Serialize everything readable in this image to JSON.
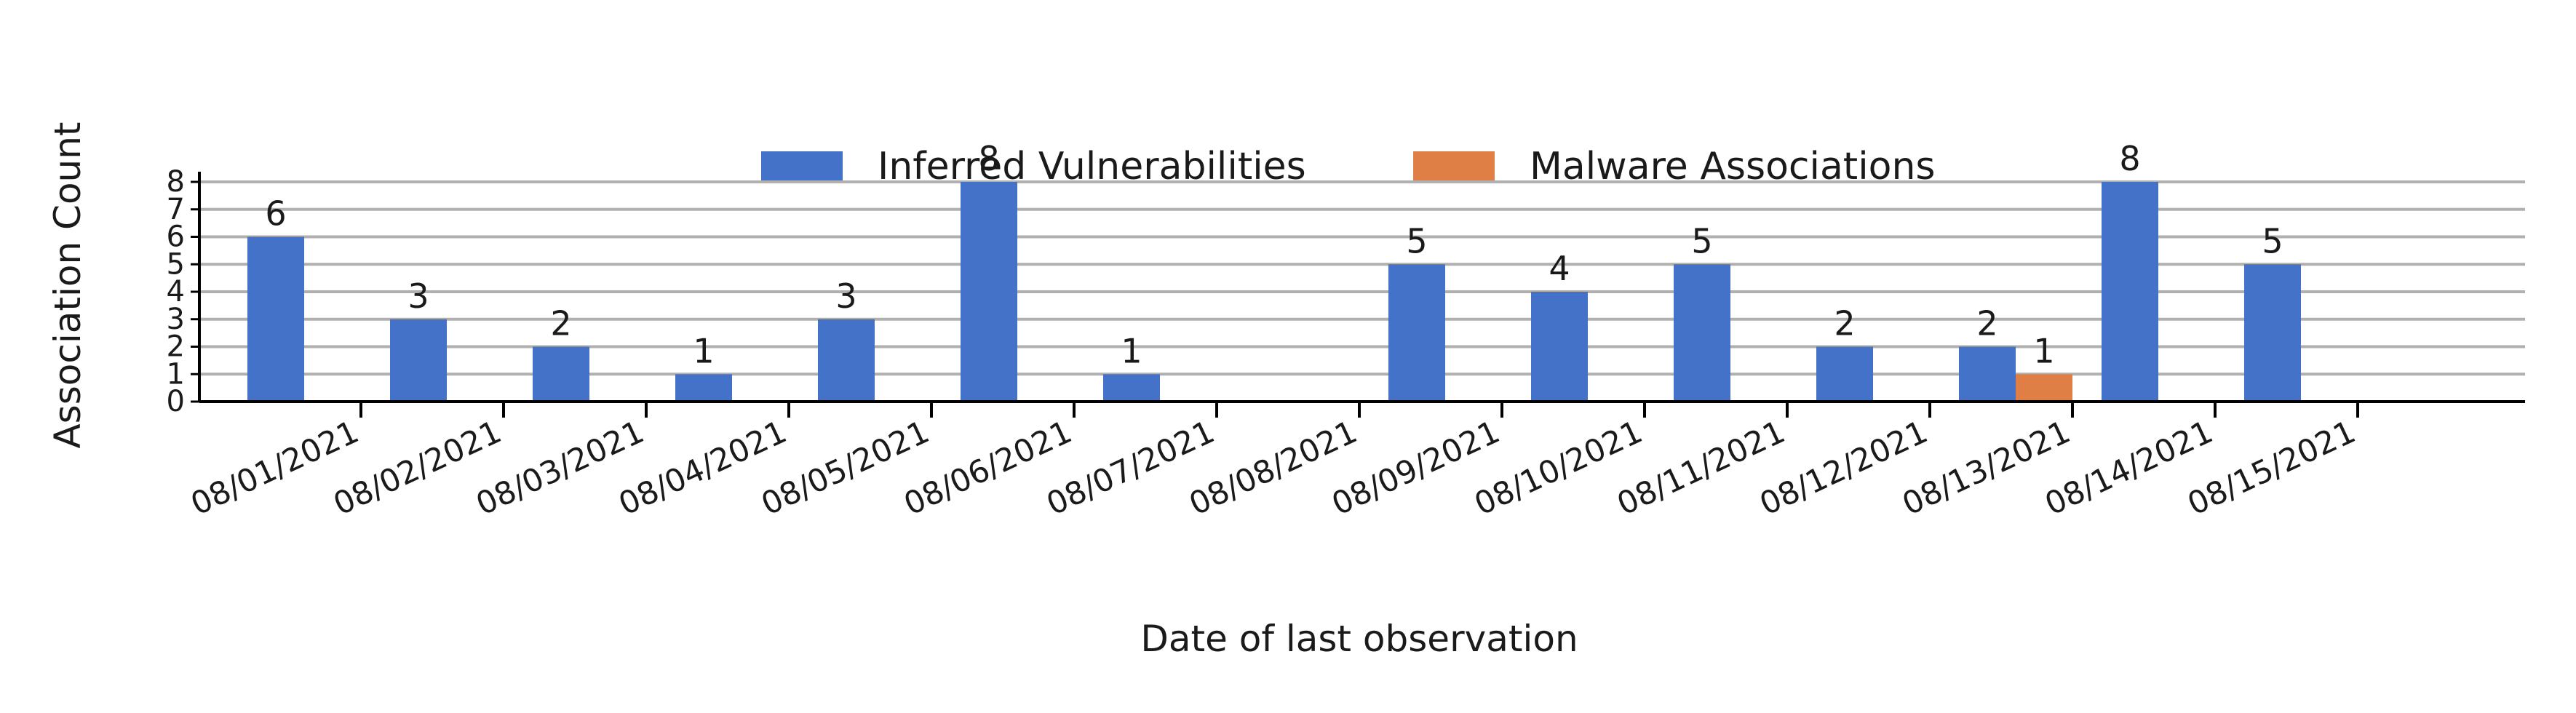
{
  "chart_data": {
    "type": "bar",
    "xlabel": "Date of last observation",
    "ylabel": "Association Count",
    "categories": [
      "08/01/2021",
      "08/02/2021",
      "08/03/2021",
      "08/04/2021",
      "08/05/2021",
      "08/06/2021",
      "08/07/2021",
      "08/08/2021",
      "08/09/2021",
      "08/10/2021",
      "08/11/2021",
      "08/12/2021",
      "08/13/2021",
      "08/14/2021",
      "08/15/2021"
    ],
    "series": [
      {
        "name": "Inferred Vulnerabilities",
        "color": "#4472C9",
        "values": [
          6,
          3,
          2,
          1,
          3,
          8,
          1,
          0,
          5,
          4,
          5,
          2,
          2,
          8,
          5
        ]
      },
      {
        "name": "Malware Associations",
        "color": "#E07F45",
        "values": [
          0,
          0,
          0,
          0,
          0,
          0,
          0,
          0,
          0,
          0,
          0,
          0,
          1,
          0,
          0
        ]
      }
    ],
    "ylim": [
      0,
      8
    ],
    "yticks": [
      "0",
      "1",
      "2",
      "3",
      "4",
      "5",
      "6",
      "7",
      "8"
    ],
    "grid": true,
    "legend": "top-center"
  }
}
